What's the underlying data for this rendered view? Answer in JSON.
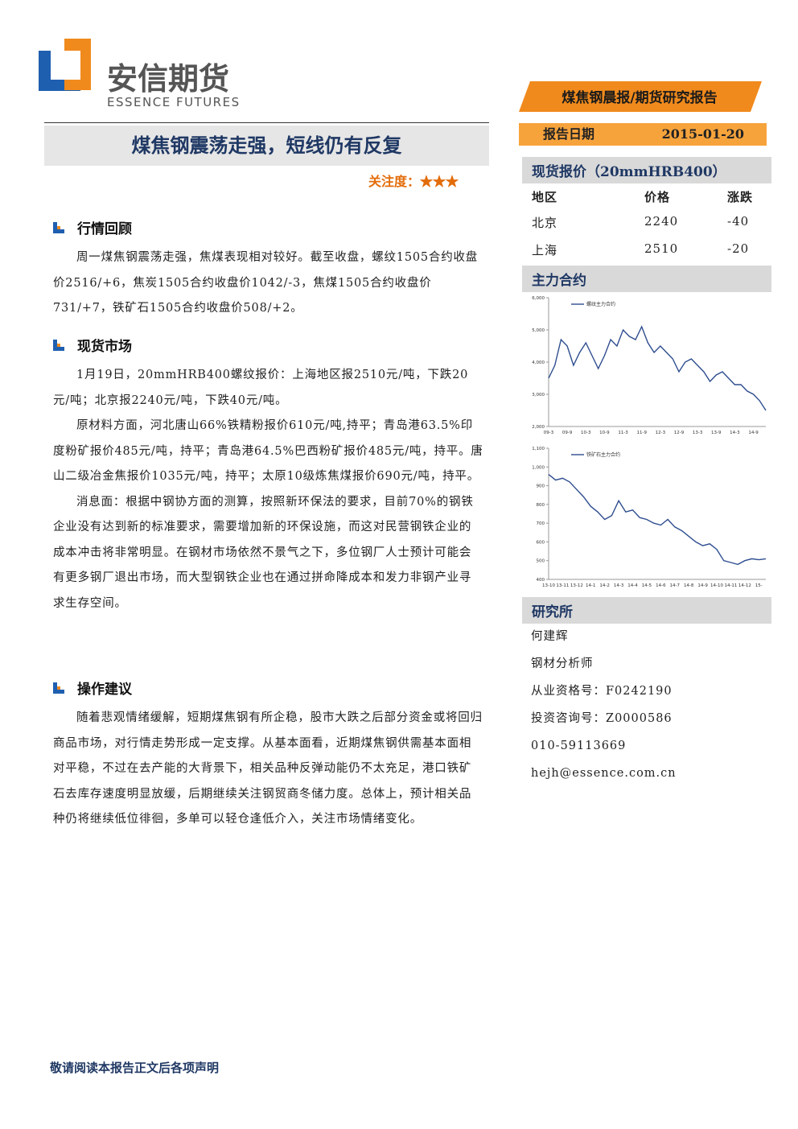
{
  "header": {
    "logo_cn": "安信期货",
    "logo_en": "ESSENCE FUTURES",
    "report_type": "煤焦钢晨报/期货研究报告"
  },
  "title": "煤焦钢震荡走强，短线仍有反复",
  "attention": {
    "label": "关注度：",
    "stars": "★★★"
  },
  "sections": [
    {
      "heading": "行情回顾",
      "paragraphs": [
        "周一煤焦钢震荡走强，焦煤表现相对较好。截至收盘，螺纹1505合约收盘价2516/+6，焦炭1505合约收盘价1042/-3，焦煤1505合约收盘价731/+7，铁矿石1505合约收盘价508/+2。"
      ]
    },
    {
      "heading": "现货市场",
      "paragraphs": [
        "1月19日，20mmHRB400螺纹报价：上海地区报2510元/吨，下跌20元/吨；北京报2240元/吨，下跌40元/吨。",
        "原材料方面，河北唐山66%铁精粉报价610元/吨,持平；青岛港63.5%印度粉矿报价485元/吨，持平；青岛港64.5%巴西粉矿报价485元/吨，持平。唐山二级冶金焦报价1035元/吨，持平；太原10级炼焦煤报价690元/吨，持平。",
        "消息面：根据中钢协方面的测算，按照新环保法的要求，目前70%的钢铁企业没有达到新的标准要求，需要增加新的环保设施，而这对民营钢铁企业的成本冲击将非常明显。在钢材市场依然不景气之下，多位钢厂人士预计可能会有更多钢厂退出市场，而大型钢铁企业也在通过拼命降成本和发力非钢产业寻求生存空间。"
      ]
    },
    {
      "heading": "操作建议",
      "paragraphs": [
        "随着悲观情绪缓解，短期煤焦钢有所企稳，股市大跌之后部分资金或将回归商品市场，对行情走势形成一定支撑。从基本面看，近期煤焦钢供需基本面相对平稳，不过在去产能的大背景下，相关品种反弹动能仍不太充足，港口铁矿石去库存速度明显放缓，后期继续关注钢贸商冬储力度。总体上，预计相关品种仍将继续低位徘徊，多单可以轻仓逢低介入，关注市场情绪变化。"
      ]
    }
  ],
  "sidebar": {
    "date_label": "报告日期",
    "date": "2015-01-20",
    "spot": {
      "title": "现货报价（20mmHRB400）",
      "columns": [
        "地区",
        "价格",
        "涨跌"
      ],
      "rows": [
        [
          "北京",
          "2240",
          "-40"
        ],
        [
          "上海",
          "2510",
          "-20"
        ]
      ]
    },
    "contracts_title": "主力合约",
    "research": {
      "title": "研究所",
      "lines": [
        "何建辉",
        "钢材分析师",
        "从业资格号：F0242190",
        "投资咨询号：Z0000586",
        "010-59113669",
        "hejh@essence.com.cn"
      ]
    }
  },
  "charts": [
    {
      "type": "line",
      "series": [
        {
          "name": "螺纹主力合约",
          "color": "#2e4d8f",
          "values": [
            3500,
            3900,
            4700,
            4500,
            3900,
            4300,
            4600,
            4200,
            3800,
            4200,
            4700,
            4500,
            5000,
            4800,
            4700,
            5100,
            4600,
            4300,
            4500,
            4300,
            4100,
            3700,
            4000,
            4100,
            3900,
            3700,
            3400,
            3600,
            3700,
            3500,
            3300,
            3300,
            3100,
            3000,
            2800,
            2500
          ]
        }
      ],
      "categories": [
        "09-3",
        null,
        null,
        "09-9",
        null,
        null,
        "10-3",
        null,
        null,
        "10-9",
        null,
        null,
        "11-3",
        null,
        null,
        "11-9",
        null,
        null,
        "12-3",
        null,
        null,
        "12-9",
        null,
        null,
        "13-3",
        null,
        null,
        "13-9",
        null,
        null,
        "14-3",
        null,
        null,
        "14-9",
        null,
        null
      ],
      "ylim": [
        2000,
        6000
      ],
      "yticks": [
        {
          "value": 2000,
          "label": "2,000"
        },
        {
          "value": 3000,
          "label": "3,000"
        },
        {
          "value": 4000,
          "label": "4,000"
        },
        {
          "value": 5000,
          "label": "5,000"
        },
        {
          "value": 6000,
          "label": "6,000"
        }
      ]
    },
    {
      "type": "line",
      "series": [
        {
          "name": "铁矿石主力合约",
          "color": "#2e4d8f",
          "values": [
            960,
            930,
            940,
            920,
            880,
            840,
            790,
            760,
            720,
            740,
            820,
            760,
            770,
            730,
            720,
            700,
            690,
            720,
            680,
            660,
            630,
            600,
            580,
            590,
            560,
            500,
            490,
            480,
            500,
            510,
            505,
            510
          ]
        }
      ],
      "categories": [
        "13-10",
        null,
        "13-11",
        null,
        "13-12",
        null,
        "14-1",
        null,
        "14-2",
        null,
        "14-3",
        null,
        "14-4",
        null,
        "14-5",
        null,
        "14-6",
        null,
        "14-7",
        null,
        "14-8",
        null,
        "14-9",
        null,
        "14-10",
        null,
        "14-11",
        null,
        "14-12",
        null,
        "15-",
        null
      ],
      "ylim": [
        400,
        1100
      ],
      "yticks": [
        400,
        500,
        600,
        700,
        800,
        900,
        {
          "value": 1000,
          "label": "1,000"
        },
        {
          "value": 1100,
          "label": "1,100"
        }
      ]
    }
  ],
  "footer": "敬请阅读本报告正文后各项声明"
}
